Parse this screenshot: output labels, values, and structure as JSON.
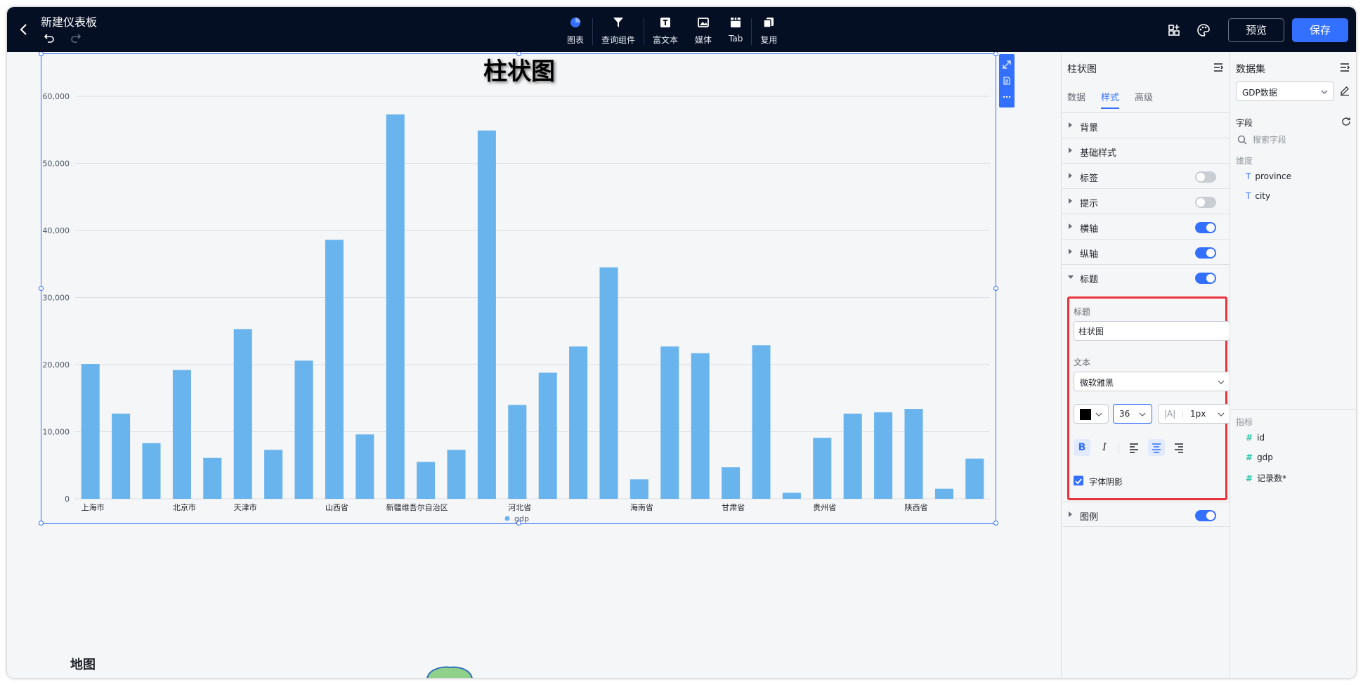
{
  "topbar": {
    "title": "新建仪表板",
    "tools": [
      {
        "label": "图表",
        "icon": "pie-chart-icon"
      },
      {
        "label": "查询组件",
        "icon": "filter-icon"
      },
      {
        "label": "富文本",
        "icon": "text-box-icon"
      },
      {
        "label": "媒体",
        "icon": "image-icon"
      },
      {
        "label": "Tab",
        "icon": "tab-icon"
      },
      {
        "label": "复用",
        "icon": "copy-icon"
      }
    ],
    "preview_label": "预览",
    "save_label": "保存",
    "accent": "#3370ff",
    "background": "#050f24"
  },
  "chart_data": {
    "type": "bar",
    "title": "柱状图",
    "categories": [
      "上海市",
      "",
      "",
      "北京市",
      "",
      "天津市",
      "",
      "",
      "山西省",
      "",
      "新疆维吾尔自治区",
      "",
      "",
      "",
      "河北省",
      "",
      "",
      "",
      "海南省",
      "",
      "",
      "甘肃省",
      "",
      "",
      "贵州省",
      "",
      "",
      "陕西省",
      "",
      ""
    ],
    "series": [
      {
        "name": "gdp",
        "color": "#6ab4ee",
        "values": [
          20100,
          12700,
          8300,
          19200,
          6100,
          25300,
          7300,
          20600,
          38600,
          9600,
          57300,
          5500,
          7300,
          54900,
          14000,
          18800,
          22700,
          34500,
          2900,
          22700,
          21700,
          4700,
          22900,
          900,
          9100,
          12700,
          12900,
          13400,
          1500,
          6000
        ]
      }
    ],
    "ylim": [
      0,
      60000
    ],
    "yticks": [
      "0",
      "10,000",
      "20,000",
      "30,000",
      "40,000",
      "50,000",
      "60,000"
    ],
    "ytick_values": [
      0,
      10000,
      20000,
      30000,
      40000,
      50000,
      60000
    ],
    "grid": true,
    "legend": "bottom-center",
    "xlabel": "",
    "ylabel": ""
  },
  "map_section": {
    "title": "地图"
  },
  "style_panel": {
    "title": "柱状图",
    "tabs": [
      "数据",
      "样式",
      "高级"
    ],
    "active_tab": "样式",
    "sections": [
      {
        "label": "背景"
      },
      {
        "label": "基础样式"
      },
      {
        "label": "标签",
        "toggle": false
      },
      {
        "label": "提示",
        "toggle": false
      },
      {
        "label": "横轴",
        "toggle": true
      },
      {
        "label": "纵轴",
        "toggle": true
      },
      {
        "label": "标题",
        "toggle": true,
        "expanded": true
      }
    ],
    "legend_section": {
      "label": "图例",
      "toggle": true
    },
    "title_editor": {
      "title_label": "标题",
      "title_value": "柱状图",
      "text_label": "文本",
      "font": "微软雅黑",
      "color": "#000000",
      "font_size": "36",
      "letter_spacing_icon": "|A|",
      "letter_spacing": "1px",
      "shadow_label": "字体阴影",
      "shadow_checked": true,
      "align": "center",
      "bold": true
    }
  },
  "data_panel": {
    "title": "数据集",
    "dataset": "GDP数据",
    "fields_label": "字段",
    "search_placeholder": "搜索字段",
    "dimension_label": "维度",
    "dimensions": [
      "province",
      "city"
    ],
    "metric_label": "指标",
    "metrics": [
      "id",
      "gdp",
      "记录数*"
    ]
  }
}
